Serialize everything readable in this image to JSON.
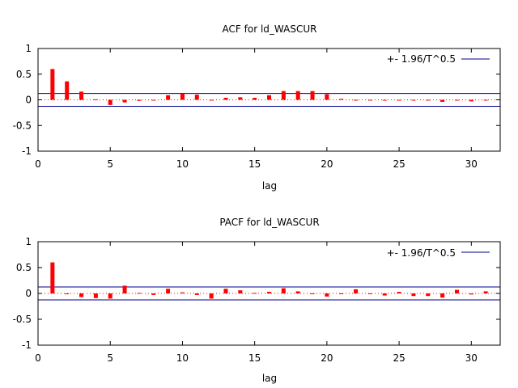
{
  "chart_data": [
    {
      "type": "bar",
      "title": "ACF for ld_WASCUR",
      "xlabel": "lag",
      "ylabel": "",
      "xlim": [
        0,
        32
      ],
      "ylim": [
        -1,
        1
      ],
      "xticks": [
        "0",
        "5",
        "10",
        "15",
        "20",
        "25",
        "30"
      ],
      "yticks": [
        "1",
        "0.5",
        "0",
        "-0.5",
        "-1"
      ],
      "legend": {
        "label": "+- 1.96/T^0.5",
        "position": "top-right",
        "color": "#00008b"
      },
      "confidence_band": 0.125,
      "bar_color": "#ff0000",
      "grid": false,
      "series": [
        {
          "lags": [
            1,
            2,
            3,
            4,
            5,
            6,
            7,
            8,
            9,
            10,
            11,
            12,
            13,
            14,
            15,
            16,
            17,
            18,
            19,
            20,
            21,
            22,
            23,
            24,
            25,
            26,
            27,
            28,
            29,
            30,
            31
          ],
          "values": [
            0.6,
            0.36,
            0.16,
            0.01,
            -0.1,
            -0.05,
            -0.02,
            0.0,
            0.09,
            0.12,
            0.1,
            0.0,
            0.04,
            0.05,
            0.04,
            0.09,
            0.17,
            0.17,
            0.17,
            0.11,
            0.02,
            0.0,
            -0.01,
            0.0,
            0.0,
            0.0,
            0.0,
            -0.04,
            0.0,
            -0.03,
            0.0
          ]
        }
      ]
    },
    {
      "type": "bar",
      "title": "PACF for ld_WASCUR",
      "xlabel": "lag",
      "ylabel": "",
      "xlim": [
        0,
        32
      ],
      "ylim": [
        -1,
        1
      ],
      "xticks": [
        "0",
        "5",
        "10",
        "15",
        "20",
        "25",
        "30"
      ],
      "yticks": [
        "1",
        "0.5",
        "0",
        "-0.5",
        "-1"
      ],
      "legend": {
        "label": "+- 1.96/T^0.5",
        "position": "top-right",
        "color": "#00008b"
      },
      "confidence_band": 0.125,
      "bar_color": "#ff0000",
      "grid": false,
      "series": [
        {
          "lags": [
            1,
            2,
            3,
            4,
            5,
            6,
            7,
            8,
            9,
            10,
            11,
            12,
            13,
            14,
            15,
            16,
            17,
            18,
            19,
            20,
            21,
            22,
            23,
            24,
            25,
            26,
            27,
            28,
            29,
            30,
            31
          ],
          "values": [
            0.6,
            -0.01,
            -0.07,
            -0.09,
            -0.1,
            0.15,
            0.01,
            -0.03,
            0.09,
            0.02,
            -0.03,
            -0.1,
            0.09,
            0.06,
            0.01,
            0.03,
            0.1,
            0.04,
            -0.01,
            -0.06,
            0.0,
            0.08,
            0.0,
            -0.04,
            0.03,
            -0.05,
            -0.05,
            -0.08,
            0.07,
            -0.02,
            0.04
          ]
        }
      ]
    }
  ]
}
